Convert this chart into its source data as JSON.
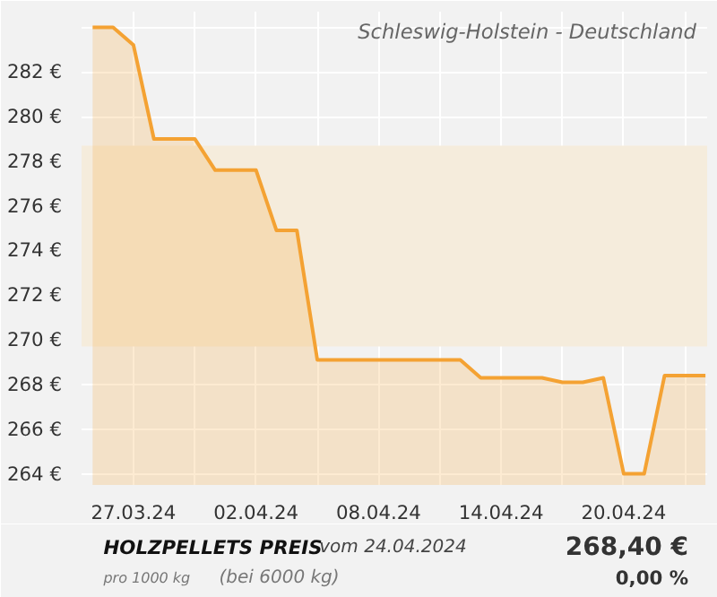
{
  "chart_data": {
    "type": "area",
    "title": "HOLZPELLETS PREIS",
    "subtitle": "Schleswig-Holstein - Deutschland",
    "annotations": [
      "vom 24.04.2024",
      "pro 1000 kg",
      "(bei 6000 kg)",
      "268,40 €",
      "0,00 %"
    ],
    "x": [
      "2024-03-25",
      "2024-03-26",
      "2024-03-27",
      "2024-03-28",
      "2024-03-29",
      "2024-03-30",
      "2024-03-31",
      "2024-04-01",
      "2024-04-02",
      "2024-04-03",
      "2024-04-04",
      "2024-04-05",
      "2024-04-06",
      "2024-04-07",
      "2024-04-08",
      "2024-04-09",
      "2024-04-10",
      "2024-04-11",
      "2024-04-12",
      "2024-04-13",
      "2024-04-14",
      "2024-04-15",
      "2024-04-16",
      "2024-04-17",
      "2024-04-18",
      "2024-04-19",
      "2024-04-20",
      "2024-04-21",
      "2024-04-22",
      "2024-04-23",
      "2024-04-24"
    ],
    "series": [
      {
        "color": "#f4a233",
        "values": [
          284.0,
          284.0,
          283.2,
          279.0,
          279.0,
          279.0,
          277.6,
          277.6,
          277.6,
          274.9,
          274.9,
          269.1,
          269.1,
          269.1,
          269.1,
          269.1,
          269.1,
          269.1,
          269.1,
          268.3,
          268.3,
          268.3,
          268.3,
          268.1,
          268.1,
          268.3,
          264.0,
          264.0,
          268.4,
          268.4,
          268.4
        ]
      }
    ],
    "xlim": [
      "2024-03-24T11:00",
      "2024-04-24T02:00"
    ],
    "xticks": [
      {
        "value": "2024-03-27",
        "label": "27.03.24"
      },
      {
        "value": "2024-03-30",
        "label": null
      },
      {
        "value": "2024-04-02",
        "label": "02.04.24"
      },
      {
        "value": "2024-04-05",
        "label": null
      },
      {
        "value": "2024-04-08",
        "label": "08.04.24"
      },
      {
        "value": "2024-04-11",
        "label": null
      },
      {
        "value": "2024-04-14",
        "label": "14.04.24"
      },
      {
        "value": "2024-04-17",
        "label": null
      },
      {
        "value": "2024-04-20",
        "label": "20.04.24"
      },
      {
        "value": "2024-04-23",
        "label": null
      }
    ],
    "ylim": [
      263.5,
      284.7
    ],
    "yticks": [
      {
        "value": 264,
        "label": "264 €"
      },
      {
        "value": 266,
        "label": "266 €"
      },
      {
        "value": 268,
        "label": "268 €"
      },
      {
        "value": 270,
        "label": "270 €"
      },
      {
        "value": 272,
        "label": "272 €"
      },
      {
        "value": 274,
        "label": "274 €"
      },
      {
        "value": 276,
        "label": "276 €"
      },
      {
        "value": 278,
        "label": "278 €"
      },
      {
        "value": 280,
        "label": "280 €"
      },
      {
        "value": 282,
        "label": "282 €"
      },
      {
        "value": 284,
        "label": null
      }
    ],
    "bands": [
      {
        "axis": "y",
        "from": 269.7,
        "to": 278.7,
        "color": "#f5ecdc"
      }
    ],
    "grid": true
  }
}
